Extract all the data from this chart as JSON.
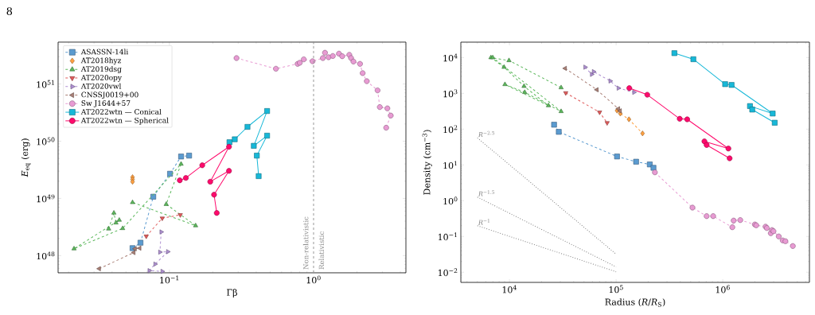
{
  "chart_data": [
    {
      "type": "line",
      "xlabel": "Γβ",
      "ylabel": "*E*$_{eq}$ (erg)",
      "log": "xy",
      "legend": "top left",
      "xlim": [
        0.0169,
        4.37
      ],
      "ylim": [
        5e+47,
        5.4e+51
      ],
      "xticks": [
        {
          "value": 0.1,
          "label": "10$^{−1}$"
        },
        {
          "value": 1,
          "label": "10$^{0}$"
        }
      ],
      "yticks": [
        {
          "value": 1e+48,
          "label": "10$^{48}$"
        },
        {
          "value": 1e+49,
          "label": "10$^{49}$"
        },
        {
          "value": 1e+50,
          "label": "10$^{50}$"
        },
        {
          "value": 1e+51,
          "label": "10$^{51}$"
        }
      ],
      "ref_lines": [
        {
          "axis": "x",
          "value": 1,
          "color": "#999999",
          "line_style": "dashed"
        }
      ],
      "annotations": [
        "8",
        "Non-relativistic",
        "Relativistic"
      ],
      "series": [
        {
          "name": "ASASSN-14li",
          "color": "#5b9bd0",
          "marker": "square",
          "line_style": "dashed",
          "x": [
            0.0555,
            0.063,
            0.0773,
            0.101,
            0.1205,
            0.137
          ],
          "values": [
            1.35e+48,
            1.68e+48,
            1.07e+49,
            2.7e+49,
            5.4e+49,
            5.6e+49
          ]
        },
        {
          "name": "AT2018hyz",
          "type": "scatter",
          "color": "#ffa040",
          "marker": "diamond",
          "x": [
            0.0555,
            0.0555,
            0.0555
          ],
          "values": [
            2.35e+49,
            2.15e+49,
            1.95e+49
          ]
        },
        {
          "name": "AT2019dsg",
          "color": "#5cb85c",
          "marker": "triangle",
          "line_style": "dashed",
          "x": [
            0.0379,
            0.0412,
            0.0426,
            0.0449,
            0.0218,
            0.0474,
            0.1205,
            0.095,
            0.152,
            0.0555
          ],
          "values": [
            2.94e+48,
            5.57e+48,
            3.75e+48,
            4.18e+48,
            1.32e+48,
            2.99e+48,
            3.99e+49,
            7.9e+48,
            3.34e+48,
            8.5e+48
          ]
        },
        {
          "name": "AT2020opy",
          "color": "#e05a5a",
          "marker": "triangle-down",
          "line_style": "dashed",
          "x": [
            0.0691,
            0.0892,
            0.119
          ],
          "values": [
            2.18e+48,
            4.5e+48,
            5.15e+48
          ]
        },
        {
          "name": "AT2020vwl",
          "color": "#ae8fd1",
          "marker": "triangle-right",
          "line_style": "dashed",
          "x": [
            0.0877,
            0.0859,
            0.0975,
            0.0796,
            0.0725,
            0.0892
          ],
          "values": [
            2.59e+48,
            1.15e+48,
            1.17e+48,
            7.1e+47,
            5.45e+47,
            5.3e+47
          ]
        },
        {
          "name": "CNSSJ0019+00",
          "color": "#a97f76",
          "marker": "triangle-left",
          "line_style": "dashed",
          "x": [
            0.0326,
            0.0566,
            0.0578,
            0.0622
          ],
          "values": [
            5.9e+47,
            1.13e+48,
            1.32e+48,
            1.35e+48
          ]
        },
        {
          "name": "Sw J1644+57",
          "color": "#e89bd3",
          "marker": "circle",
          "line_style": "dashed",
          "x": [
            0.292,
            0.548,
            0.775,
            0.802,
            0.855,
            0.984,
            1.16,
            1.2,
            1.27,
            1.36,
            1.5,
            1.58,
            1.77,
            1.82,
            1.89,
            2.1,
            2.19,
            2.34,
            2.78,
            2.88,
            3.25,
            3.43,
            3.19
          ],
          "values": [
            2.84e+51,
            1.85e+51,
            2.25e+51,
            2.35e+51,
            2.7e+51,
            2.5e+51,
            2.84e+51,
            3.52e+51,
            2.94e+51,
            3.09e+51,
            3.4e+51,
            3.06e+51,
            3.24e+51,
            2.84e+51,
            2.47e+51,
            2.25e+51,
            1.55e+51,
            1.12e+51,
            7.74e+50,
            3.95e+50,
            3.75e+50,
            2.81e+50,
            1.72e+50
          ]
        },
        {
          "name": "AT2022wtn — Conical",
          "color": "#17b8d8",
          "marker": "square",
          "line_style": "solid",
          "x": [
            0.261,
            0.284,
            0.348,
            0.476,
            0.385,
            0.476,
            0.404,
            0.416
          ],
          "values": [
            9.6e+49,
            1.08e+50,
            1.78e+50,
            3.37e+50,
            8.3e+49,
            1.25e+50,
            5.6e+49,
            2.45e+49
          ]
        },
        {
          "name": "AT2022wtn — Spherical",
          "color": "#ff0a6c",
          "marker": "circle",
          "line_style": "solid",
          "x": [
            0.118,
            0.13,
            0.169,
            0.259,
            0.192,
            0.259,
            0.204,
            0.213
          ],
          "values": [
            2.07e+49,
            2.28e+49,
            3.79e+49,
            8e+49,
            1.96e+49,
            3.03e+49,
            1.16e+49,
            5.57e+48
          ]
        }
      ]
    },
    {
      "type": "line",
      "xlabel": "Radius (*R*/*R*$_{S}$)",
      "ylabel": "Density (cm$^{−3}$)",
      "log": "xy",
      "legend": false,
      "xlim": [
        3500,
        6500000.0
      ],
      "ylim": [
        0.0052,
        27000
      ],
      "xticks": [
        {
          "value": 10000,
          "label": "10$^{4}$"
        },
        {
          "value": 100000,
          "label": "10$^{5}$"
        },
        {
          "value": 1000000,
          "label": "10$^{6}$"
        }
      ],
      "yticks": [
        {
          "value": 0.01,
          "label": "10$^{−2}$"
        },
        {
          "value": 0.1,
          "label": "10$^{−1}$"
        },
        {
          "value": 1,
          "label": "10$^{0}$"
        },
        {
          "value": 10,
          "label": "10$^{1}$"
        },
        {
          "value": 100,
          "label": "10$^{2}$"
        },
        {
          "value": 1000,
          "label": "10$^{3}$"
        },
        {
          "value": 10000,
          "label": "10$^{4}$"
        }
      ],
      "series": [
        {
          "color": "#5b9bd0",
          "marker": "square",
          "line_style": "dashed",
          "x": [
            26200,
            29000,
            102000,
            154000,
            207000,
            224000
          ],
          "values": [
            133,
            84,
            17.2,
            12.3,
            10.3,
            8.3
          ]
        },
        {
          "color": "#ffa040",
          "marker": "diamond",
          "line_style": "dashed",
          "x": [
            102000,
            109500,
            132000,
            177000
          ],
          "values": [
            330,
            273,
            188,
            76
          ]
        },
        {
          "color": "#5cb85c",
          "marker": "triangle",
          "line_style": "dashed",
          "x": [
            30500,
            9900,
            6700,
            8900,
            13700,
            23200,
            9070,
            13900,
            30500,
            6970
          ],
          "values": [
            1450,
            8300,
            10000,
            5400,
            1580,
            455,
            1780,
            1070,
            313,
            10000
          ]
        },
        {
          "color": "#e05a5a",
          "marker": "triangle-down",
          "line_style": "dashed",
          "x": [
            33700,
            70000,
            82400
          ],
          "values": [
            1030,
            297,
            150
          ]
        },
        {
          "color": "#ae8fd1",
          "marker": "triangle-right",
          "line_style": "dashed",
          "x": [
            51200,
            59000,
            61500,
            88000,
            105000,
            147000
          ],
          "values": [
            5400,
            3400,
            4050,
            2220,
            1400,
            1070
          ]
        },
        {
          "color": "#a97f76",
          "marker": "triangle-left",
          "line_style": "dashed",
          "x": [
            33300,
            66000,
            105000,
            109000
          ],
          "values": [
            5000,
            1260,
            371,
            324
          ]
        },
        {
          "color": "#e89bd3",
          "marker": "circle",
          "line_style": "dashed",
          "x": [
            231000,
            520000,
            706000,
            813000,
            1230000,
            1265000,
            1460000,
            2000000,
            2060000,
            2520000,
            2590000,
            2820000,
            2900000,
            2990000,
            3350000,
            3650000,
            3870000,
            4540000
          ],
          "values": [
            6.2,
            0.64,
            0.37,
            0.37,
            0.181,
            0.278,
            0.287,
            0.216,
            0.205,
            0.188,
            0.172,
            0.123,
            0.151,
            0.14,
            0.1,
            0.0774,
            0.0736,
            0.054
          ]
        },
        {
          "color": "#17b8d8",
          "marker": "square",
          "line_style": "solid",
          "x": [
            352000,
            530000,
            1053000,
            1210000,
            2940000,
            1800000,
            1890000,
            3070000
          ],
          "values": [
            13300,
            9000,
            1810,
            1720,
            273,
            441,
            352,
            151
          ]
        },
        {
          "color": "#ff0a6c",
          "marker": "circle",
          "line_style": "solid",
          "x": [
            133000,
            196000,
            395000,
            464000,
            1130000,
            673000,
            706000,
            1160000
          ],
          "values": [
            1400,
            916,
            195,
            188,
            28.7,
            45.5,
            36,
            15.3
          ]
        },
        {
          "name": "*R*$^{−2.5}$",
          "color": "#808080",
          "marker": "none",
          "line_style": "dotted",
          "x": [
            5000,
            100000
          ],
          "values": [
            57,
            0.032
          ]
        },
        {
          "name": "*R*$^{−1.5}$",
          "color": "#808080",
          "marker": "none",
          "line_style": "dotted",
          "x": [
            5000,
            100000
          ],
          "values": [
            1.26,
            0.0141
          ]
        },
        {
          "name": "*R*$^{−1}$",
          "color": "#808080",
          "marker": "none",
          "line_style": "dotted",
          "x": [
            5000,
            100000
          ],
          "values": [
            0.2,
            0.0103
          ]
        }
      ]
    }
  ]
}
